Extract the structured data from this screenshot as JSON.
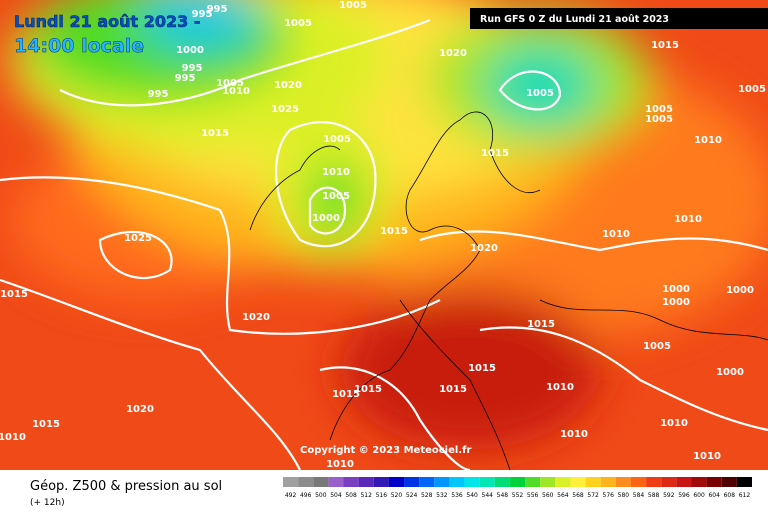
{
  "header": {
    "date": "Lundi 21 août 2023 -",
    "time": "14:00 locale",
    "run": "Run GFS 0 Z du Lundi 21 août 2023"
  },
  "footer": {
    "title": "Géop. Z500 & pression au sol",
    "step": "(+ 12h)",
    "copyright": "Copyright © 2023 Meteociel.fr"
  },
  "isobar_labels": [
    "995",
    "995",
    "1005",
    "1005",
    "1000",
    "995",
    "995",
    "995",
    "1005",
    "1010",
    "1020",
    "1025",
    "1015",
    "1020",
    "1015",
    "1005",
    "1005",
    "1005",
    "1005",
    "1015",
    "1010",
    "1005",
    "1010",
    "1005",
    "1000",
    "1015",
    "1025",
    "1020",
    "1010",
    "1010",
    "1015",
    "1020",
    "1000",
    "1000",
    "1000",
    "1015",
    "1005",
    "1000",
    "1015",
    "1015",
    "1015",
    "1015",
    "1010",
    "1020",
    "1015",
    "1010",
    "1010",
    "1010",
    "1010",
    "1010"
  ],
  "legend": {
    "values": [
      492,
      496,
      500,
      504,
      508,
      512,
      516,
      520,
      524,
      528,
      532,
      536,
      540,
      544,
      548,
      552,
      556,
      560,
      564,
      568,
      572,
      576,
      580,
      584,
      588,
      592,
      596,
      600,
      604,
      608,
      612
    ],
    "colors": [
      "#a0a0a0",
      "#8c8c8c",
      "#787878",
      "#9a5fc8",
      "#7a3fc0",
      "#5a28b8",
      "#3218b4",
      "#0000c8",
      "#0032e6",
      "#0064ff",
      "#0096ff",
      "#00c8ff",
      "#00e6e6",
      "#00e6b4",
      "#00dc78",
      "#00d23c",
      "#50dc28",
      "#a0e628",
      "#dcf028",
      "#fff03c",
      "#ffd21e",
      "#ffb41e",
      "#ff8c1e",
      "#ff6414",
      "#f03c14",
      "#dc2814",
      "#c81414",
      "#a00a0a",
      "#780000",
      "#500000",
      "#000000"
    ]
  }
}
